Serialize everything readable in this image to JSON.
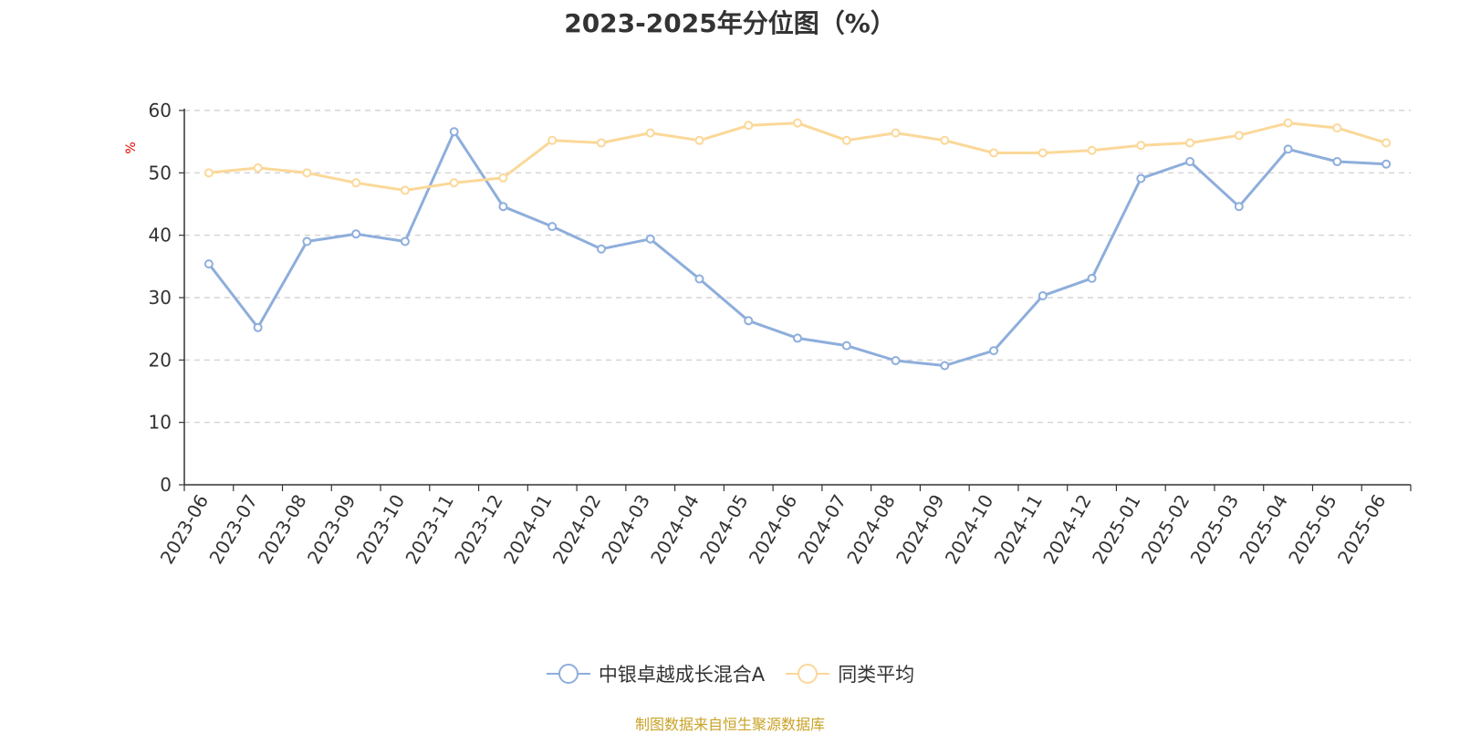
{
  "chart_data": {
    "type": "line",
    "title": "2023-2025年分位图（%）",
    "ylabel": "%",
    "xlabel": "",
    "ylim": [
      0,
      60
    ],
    "yticks": [
      0,
      10,
      20,
      30,
      40,
      50,
      60
    ],
    "grid": true,
    "legend_position": "bottom",
    "categories": [
      "2023-06",
      "2023-07",
      "2023-08",
      "2023-09",
      "2023-10",
      "2023-11",
      "2023-12",
      "2024-01",
      "2024-02",
      "2024-03",
      "2024-04",
      "2024-05",
      "2024-06",
      "2024-07",
      "2024-08",
      "2024-09",
      "2024-10",
      "2024-11",
      "2024-12",
      "2025-01",
      "2025-02",
      "2025-03",
      "2025-04",
      "2025-05",
      "2025-06"
    ],
    "series": [
      {
        "name": "中银卓越成长混合A",
        "color": "#8eaedb",
        "values": [
          35.4,
          25.2,
          39.0,
          40.2,
          39.0,
          56.6,
          44.6,
          41.4,
          37.8,
          39.4,
          33.0,
          26.3,
          23.5,
          22.3,
          19.9,
          19.1,
          21.5,
          30.3,
          33.1,
          49.1,
          51.8,
          44.6,
          53.8,
          51.8,
          51.4
        ]
      },
      {
        "name": "同类平均",
        "color": "#fbd899",
        "values": [
          50.0,
          50.8,
          50.0,
          48.4,
          47.2,
          48.4,
          49.2,
          55.2,
          54.8,
          56.4,
          55.2,
          57.6,
          58.0,
          55.2,
          56.4,
          55.2,
          53.2,
          53.2,
          53.6,
          54.4,
          54.8,
          56.0,
          58.0,
          57.2,
          54.8
        ]
      }
    ]
  },
  "footer": {
    "source_note": "制图数据来自恒生聚源数据库"
  }
}
